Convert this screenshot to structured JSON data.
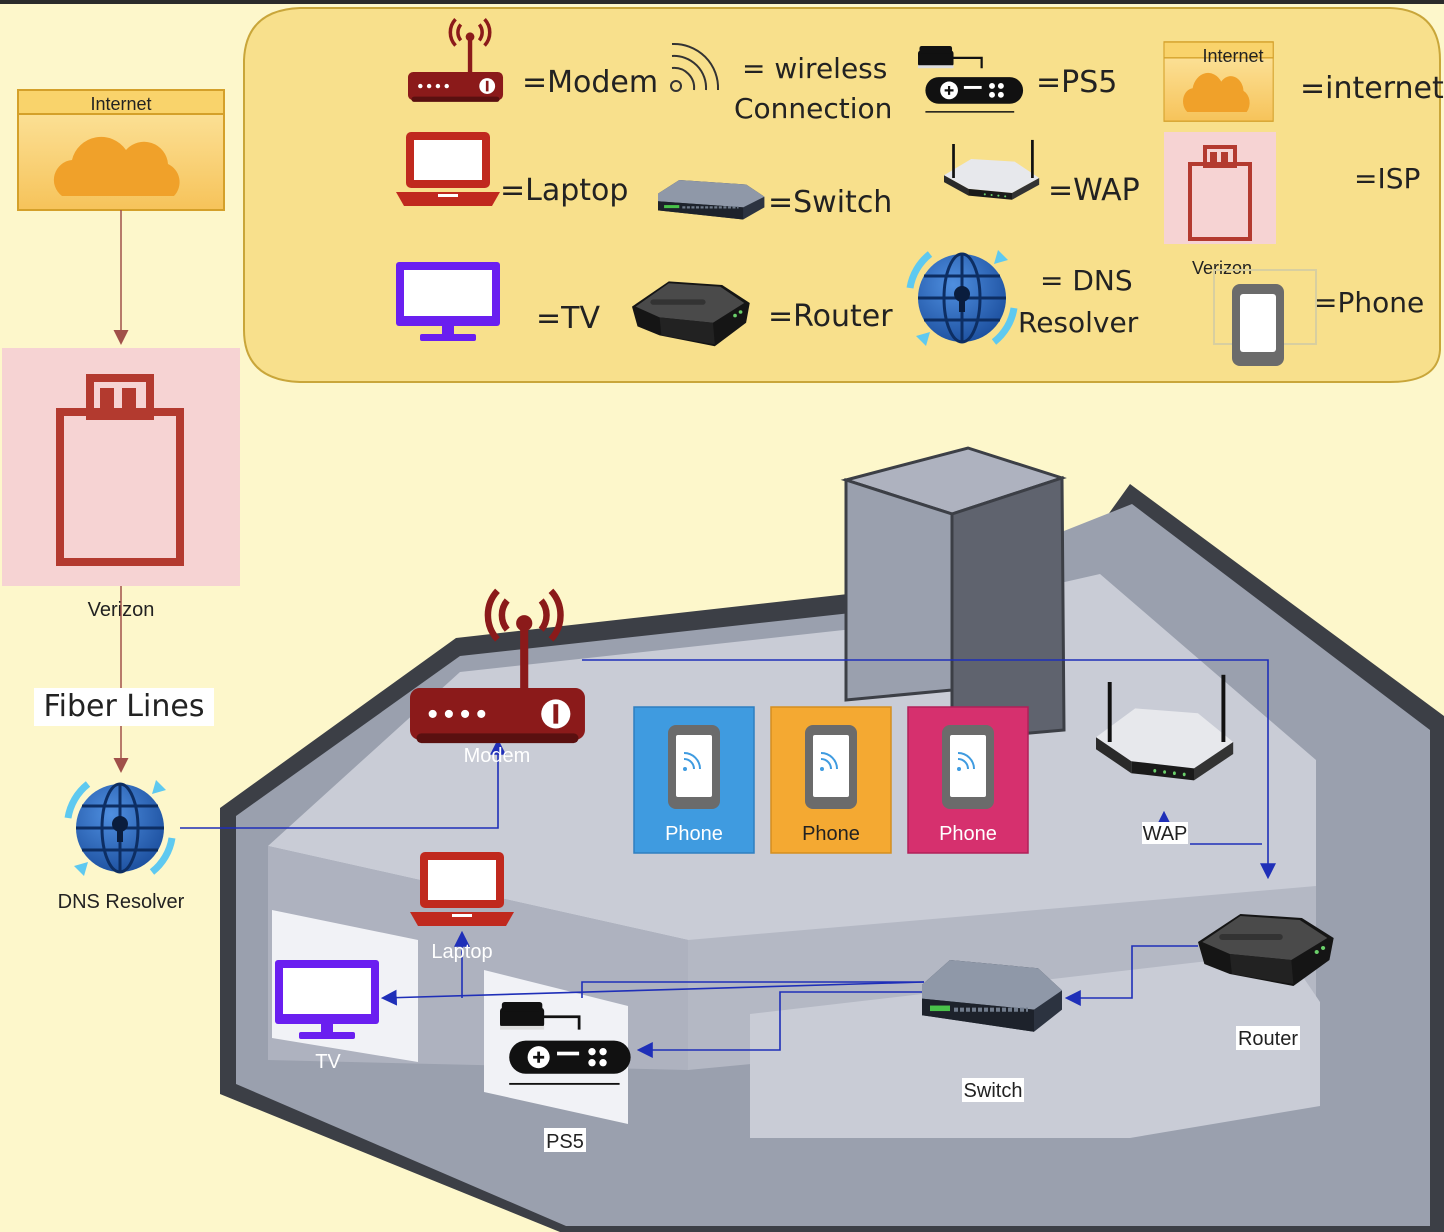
{
  "colors": {
    "background": "#fdf7cb",
    "frame": "#2b2b2b",
    "legend_fill": "#f8e08c",
    "internet_fill": "#f9d36b",
    "isp_fill": "#f6d3d3",
    "isp_building": "#b33a2f",
    "modem_red": "#8b1a1a",
    "laptop_red": "#c0291e",
    "tv_purple": "#6a1ff0",
    "link_blue": "#1f2fb8",
    "fiber_brown": "#a0504a",
    "house_light": "#c9ccd6",
    "house_mid": "#9aa0ae",
    "house_dark": "#5f636e",
    "phone_blue": "#3f9be0",
    "phone_orange": "#f4a932",
    "phone_pink": "#d6306e"
  },
  "legend": {
    "modem": "=Modem",
    "wireless_line1": "= wireless",
    "wireless_line2": "Connection",
    "ps5": "=PS5",
    "internet_box": "Internet",
    "internet": "=internet",
    "laptop": "=Laptop",
    "switch": "=Switch",
    "wap": "=WAP",
    "isp": "=ISP",
    "isp_caption": "Verizon",
    "tv": "=TV",
    "router": "=Router",
    "dns_line1": "= DNS",
    "dns_line2": "Resolver",
    "phone": "=Phone"
  },
  "left_column": {
    "internet_label": "Internet",
    "isp_label": "Verizon",
    "fiber_label": "Fiber Lines",
    "dns_label": "DNS Resolver"
  },
  "house": {
    "modem": "Modem",
    "phones": [
      "Phone",
      "Phone",
      "Phone"
    ],
    "wap": "WAP",
    "laptop": "Laptop",
    "tv": "TV",
    "ps5": "PS5",
    "switch": "Switch",
    "router": "Router"
  },
  "icons": [
    "modem-icon",
    "wifi-icon",
    "ps5-icon",
    "internet-cloud-icon",
    "laptop-icon",
    "switch-icon",
    "wap-icon",
    "isp-building-icon",
    "tv-icon",
    "router-icon",
    "dns-globe-icon",
    "phone-icon"
  ]
}
